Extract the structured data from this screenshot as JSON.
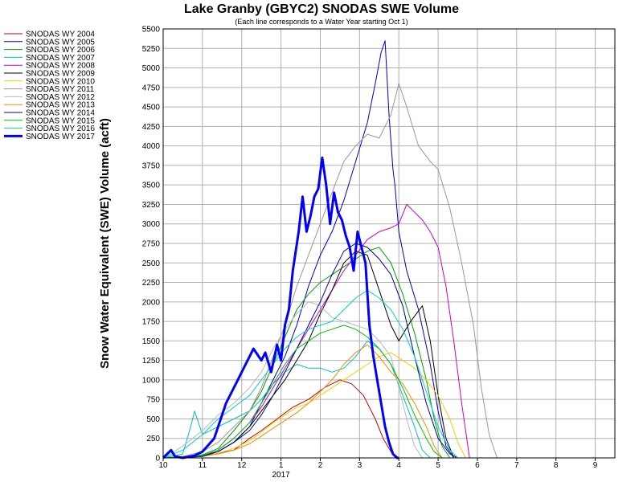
{
  "chart_data": {
    "type": "line",
    "title": "Lake Granby (GBYC2) SNODAS SWE Volume",
    "subtitle": "(Each line corresponds to a Water Year starting Oct 1)",
    "ylabel": "Snow Water Equivalent (SWE) Volume (acft)",
    "xlabel": "",
    "ylim": [
      0,
      5500
    ],
    "xlim": [
      0,
      11.5
    ],
    "y_ticks": [
      0,
      250,
      500,
      750,
      1000,
      1250,
      1500,
      1750,
      2000,
      2250,
      2500,
      2750,
      3000,
      3250,
      3500,
      3750,
      4000,
      4250,
      4500,
      4750,
      5000,
      5250,
      5500
    ],
    "x_ticks": [
      {
        "pos": 0,
        "label": "10"
      },
      {
        "pos": 1,
        "label": "11"
      },
      {
        "pos": 2,
        "label": "12"
      },
      {
        "pos": 3,
        "label": "1"
      },
      {
        "pos": 4,
        "label": "2"
      },
      {
        "pos": 5,
        "label": "3"
      },
      {
        "pos": 6,
        "label": "4"
      },
      {
        "pos": 7,
        "label": "5"
      },
      {
        "pos": 8,
        "label": "6"
      },
      {
        "pos": 9,
        "label": "7"
      },
      {
        "pos": 10,
        "label": "8"
      },
      {
        "pos": 11,
        "label": "9"
      }
    ],
    "year_label": {
      "pos": 3,
      "text": "2017"
    },
    "grid": true,
    "legend_position": "left-top",
    "series": [
      {
        "name": "SNODAS WY 2004",
        "color": "#cc0000",
        "width": 1,
        "x": [
          0,
          0.5,
          1,
          1.4,
          1.8,
          2.2,
          2.5,
          2.9,
          3.3,
          3.7,
          4.1,
          4.5,
          4.8,
          5.1,
          5.4,
          5.6,
          5.8,
          6.0
        ],
        "y": [
          0,
          0,
          20,
          60,
          100,
          250,
          350,
          500,
          650,
          750,
          900,
          1000,
          950,
          800,
          500,
          250,
          80,
          0
        ]
      },
      {
        "name": "SNODAS WY 2005",
        "color": "#0000cc",
        "width": 1,
        "x": [
          0,
          0.5,
          1,
          1.4,
          1.8,
          2.2,
          2.5,
          2.8,
          3.1,
          3.4,
          3.7,
          4.0,
          4.3,
          4.6,
          4.9,
          5.2,
          5.4,
          5.55,
          5.65,
          5.75,
          5.85,
          5.9,
          6.0,
          6.2,
          6.5,
          6.8,
          7.0,
          7.2,
          7.4
        ],
        "y": [
          0,
          10,
          30,
          80,
          200,
          400,
          700,
          1000,
          1300,
          1700,
          2200,
          2600,
          2900,
          3300,
          3800,
          4300,
          4800,
          5200,
          5350,
          4400,
          3700,
          3500,
          2900,
          2400,
          1900,
          1200,
          600,
          150,
          0
        ]
      },
      {
        "name": "SNODAS WY 2006",
        "color": "#00a000",
        "width": 1,
        "x": [
          0,
          0.5,
          1,
          1.4,
          1.8,
          2.2,
          2.5,
          2.8,
          3.1,
          3.4,
          3.7,
          4.0,
          4.3,
          4.6,
          4.9,
          5.2,
          5.5,
          5.8,
          6.1,
          6.4,
          6.7,
          6.9,
          7.1,
          7.3
        ],
        "y": [
          0,
          5,
          40,
          120,
          350,
          600,
          850,
          1200,
          1550,
          1900,
          2100,
          2250,
          2350,
          2450,
          2550,
          2650,
          2700,
          2500,
          2100,
          1600,
          1000,
          500,
          150,
          0
        ]
      },
      {
        "name": "SNODAS WY 2007",
        "color": "#00c0c0",
        "width": 1,
        "x": [
          0,
          0.5,
          0.7,
          0.8,
          1,
          1.4,
          1.8,
          2.2,
          2.5,
          2.8,
          3.1,
          3.4,
          3.7,
          4.0,
          4.3,
          4.6,
          4.9,
          5.2,
          5.5,
          5.8,
          6.1,
          6.4,
          6.6,
          6.8
        ],
        "y": [
          0,
          50,
          400,
          600,
          300,
          400,
          500,
          600,
          750,
          950,
          1100,
          1200,
          1150,
          1150,
          1100,
          1150,
          1300,
          1500,
          1400,
          1200,
          800,
          400,
          100,
          0
        ]
      },
      {
        "name": "SNODAS WY 2008",
        "color": "#cc00cc",
        "width": 1,
        "x": [
          0,
          0.5,
          1,
          1.4,
          1.8,
          2.2,
          2.5,
          2.8,
          3.1,
          3.4,
          3.7,
          4.0,
          4.3,
          4.6,
          4.9,
          5.2,
          5.5,
          5.8,
          6.0,
          6.2,
          6.4,
          6.6,
          6.8,
          7.0,
          7.2,
          7.4,
          7.6,
          7.8
        ],
        "y": [
          0,
          5,
          30,
          100,
          250,
          450,
          650,
          900,
          1150,
          1400,
          1650,
          1900,
          2150,
          2400,
          2600,
          2800,
          2900,
          2950,
          3000,
          3250,
          3150,
          3050,
          2900,
          2700,
          2200,
          1500,
          700,
          0
        ]
      },
      {
        "name": "SNODAS WY 2009",
        "color": "#000000",
        "width": 1,
        "x": [
          0,
          0.5,
          1,
          1.4,
          1.8,
          2.2,
          2.5,
          2.8,
          3.1,
          3.4,
          3.7,
          4.0,
          4.3,
          4.6,
          4.9,
          5.2,
          5.5,
          5.8,
          6.0,
          6.3,
          6.6,
          6.8,
          7.0,
          7.2,
          7.4
        ],
        "y": [
          0,
          5,
          20,
          80,
          200,
          400,
          600,
          800,
          1000,
          1250,
          1500,
          1850,
          2150,
          2500,
          2650,
          2600,
          2150,
          1700,
          1500,
          1750,
          1950,
          1500,
          800,
          250,
          0
        ]
      },
      {
        "name": "SNODAS WY 2010",
        "color": "#f0d000",
        "width": 1,
        "x": [
          0,
          0.5,
          1,
          1.4,
          1.8,
          2.2,
          2.5,
          2.8,
          3.1,
          3.4,
          3.7,
          4.0,
          4.3,
          4.6,
          4.9,
          5.2,
          5.5,
          5.8,
          6.1,
          6.4,
          6.7,
          7.0,
          7.3,
          7.5,
          7.7
        ],
        "y": [
          0,
          5,
          20,
          60,
          120,
          220,
          330,
          450,
          550,
          650,
          700,
          800,
          900,
          1000,
          1100,
          1200,
          1300,
          1350,
          1250,
          1150,
          1000,
          800,
          500,
          200,
          0
        ]
      },
      {
        "name": "SNODAS WY 2011",
        "color": "#a89090",
        "width": 1,
        "x": [
          0,
          0.5,
          1,
          1.4,
          1.8,
          2.2,
          2.5,
          2.8,
          3.1,
          3.4,
          3.7,
          4.0,
          4.3,
          4.6,
          4.9,
          5.2,
          5.5,
          5.8,
          6.0,
          6.2,
          6.5,
          6.8,
          7.0,
          7.3,
          7.6,
          7.9,
          8.1,
          8.3,
          8.5
        ],
        "y": [
          0,
          20,
          80,
          200,
          400,
          600,
          900,
          1300,
          1700,
          2200,
          2600,
          3000,
          3400,
          3800,
          4000,
          4150,
          4100,
          4400,
          4800,
          4500,
          4000,
          3800,
          3700,
          3200,
          2500,
          1700,
          900,
          300,
          0
        ]
      },
      {
        "name": "SNODAS WY 2012",
        "color": "#b8b8b8",
        "width": 1,
        "x": [
          0,
          0.5,
          1,
          1.4,
          1.8,
          2.2,
          2.5,
          2.8,
          3.1,
          3.4,
          3.7,
          4.0,
          4.3,
          4.6,
          4.9,
          5.2,
          5.5,
          5.8,
          6.0,
          6.2,
          6.4,
          6.6
        ],
        "y": [
          0,
          150,
          350,
          550,
          700,
          900,
          1100,
          1400,
          1650,
          1850,
          2000,
          1950,
          1800,
          1750,
          1700,
          1650,
          1500,
          1300,
          900,
          500,
          150,
          0
        ]
      },
      {
        "name": "SNODAS WY 2013",
        "color": "#ff8800",
        "width": 1,
        "x": [
          0,
          0.5,
          1,
          1.4,
          1.8,
          2.2,
          2.5,
          2.8,
          3.1,
          3.4,
          3.7,
          4.0,
          4.3,
          4.6,
          4.9,
          5.2,
          5.5,
          5.8,
          6.1,
          6.4,
          6.7,
          6.9,
          7.1
        ],
        "y": [
          0,
          5,
          20,
          50,
          100,
          180,
          280,
          380,
          480,
          580,
          700,
          850,
          1000,
          1200,
          1350,
          1450,
          1300,
          1100,
          950,
          700,
          400,
          150,
          0
        ]
      },
      {
        "name": "SNODAS WY 2014",
        "color": "#0000aa",
        "width": 1,
        "x": [
          0,
          0.5,
          1,
          1.4,
          1.8,
          2.2,
          2.5,
          2.8,
          3.1,
          3.4,
          3.7,
          4.0,
          4.3,
          4.6,
          4.9,
          5.2,
          5.5,
          5.8,
          6.1,
          6.4,
          6.7,
          7.0,
          7.3,
          7.5
        ],
        "y": [
          0,
          5,
          20,
          80,
          200,
          350,
          550,
          800,
          1100,
          1400,
          1700,
          2000,
          2350,
          2650,
          2750,
          2700,
          2550,
          2350,
          1950,
          1300,
          700,
          250,
          50,
          0
        ]
      },
      {
        "name": "SNODAS WY 2015",
        "color": "#00c000",
        "width": 1,
        "x": [
          0,
          0.5,
          1,
          1.4,
          1.8,
          2.2,
          2.5,
          2.8,
          3.1,
          3.4,
          3.7,
          4.0,
          4.3,
          4.6,
          4.9,
          5.2,
          5.5,
          5.8,
          6.1,
          6.4,
          6.7,
          6.9,
          7.1
        ],
        "y": [
          0,
          5,
          30,
          100,
          250,
          450,
          700,
          950,
          1200,
          1400,
          1500,
          1600,
          1650,
          1700,
          1650,
          1550,
          1400,
          1200,
          900,
          550,
          250,
          80,
          0
        ]
      },
      {
        "name": "SNODAS WY 2016",
        "color": "#00d0d0",
        "width": 1,
        "x": [
          0,
          0.5,
          1,
          1.4,
          1.8,
          2.2,
          2.5,
          2.8,
          3.1,
          3.4,
          3.7,
          4.0,
          4.3,
          4.6,
          4.9,
          5.2,
          5.5,
          5.8,
          6.1,
          6.4,
          6.7,
          7.0,
          7.3,
          7.5
        ],
        "y": [
          0,
          100,
          300,
          500,
          650,
          800,
          1000,
          1200,
          1400,
          1550,
          1650,
          1700,
          1750,
          1900,
          2050,
          2150,
          2050,
          1900,
          1650,
          1300,
          850,
          400,
          100,
          0
        ]
      },
      {
        "name": "SNODAS WY 2017",
        "color": "#0000ff",
        "width": 3,
        "x": [
          0,
          0.2,
          0.3,
          0.5,
          0.8,
          1.0,
          1.3,
          1.6,
          1.9,
          2.1,
          2.3,
          2.5,
          2.6,
          2.75,
          2.9,
          3.0,
          3.1,
          3.2,
          3.3,
          3.45,
          3.55,
          3.65,
          3.75,
          3.85,
          3.95,
          4.05,
          4.15,
          4.25,
          4.35,
          4.45,
          4.55,
          4.65,
          4.75,
          4.85,
          4.95,
          5.05,
          5.15,
          5.25,
          5.35,
          5.45,
          5.55,
          5.65,
          5.75,
          5.85,
          5.95,
          6.0
        ],
        "y": [
          0,
          100,
          20,
          0,
          30,
          80,
          250,
          700,
          1000,
          1200,
          1400,
          1250,
          1350,
          1100,
          1450,
          1250,
          1700,
          1900,
          2400,
          2900,
          3350,
          2900,
          3100,
          3350,
          3450,
          3850,
          3500,
          3000,
          3400,
          3150,
          3050,
          2850,
          2700,
          2400,
          2900,
          2700,
          2500,
          1700,
          1300,
          1000,
          700,
          400,
          200,
          50,
          0,
          0
        ]
      }
    ]
  }
}
